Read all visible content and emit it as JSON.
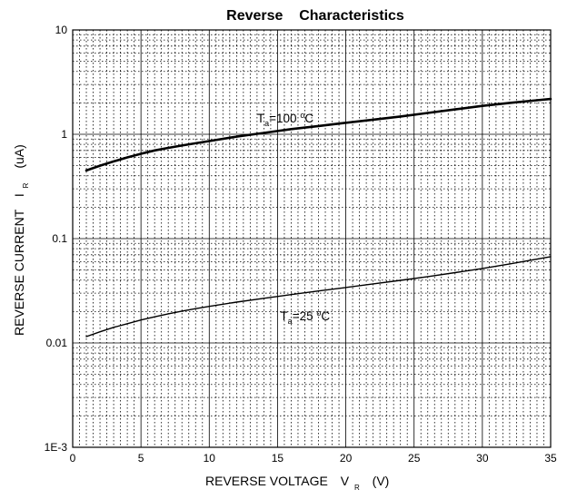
{
  "chart_data": {
    "type": "line",
    "title": "Reverse    Characteristics",
    "xlabel": "REVERSE VOLTAGE",
    "xlabel_symbol": "V",
    "xlabel_subscript": "R",
    "xlabel_unit": "(V)",
    "ylabel": "REVERSE CURRENT",
    "ylabel_symbol": "I",
    "ylabel_subscript": "R",
    "ylabel_unit": "(uA)",
    "xlim": [
      0,
      35
    ],
    "ylim": [
      0.001,
      10
    ],
    "yscale": "log",
    "grid": true,
    "x_ticks": [
      0,
      5,
      10,
      15,
      20,
      25,
      30,
      35
    ],
    "x_tick_labels": [
      "0",
      "5",
      "10",
      "15",
      "20",
      "25",
      "30",
      "35"
    ],
    "y_ticks": [
      0.001,
      0.01,
      0.1,
      1,
      10
    ],
    "y_tick_labels": [
      "1E-3",
      "0.01",
      "0.1",
      "1",
      "10"
    ],
    "series": [
      {
        "label_prefix": "T",
        "label_subscript": "a",
        "label_value": "=100",
        "label_unit": "C",
        "label_degree": "o",
        "label_at": [
          13.5,
          1.3
        ],
        "stroke": "#000000",
        "stroke_width": 2.6,
        "x": [
          1,
          2,
          3,
          4,
          5,
          6,
          7,
          8,
          9,
          10,
          12,
          14,
          16,
          18,
          20,
          22,
          24,
          26,
          28,
          30,
          32,
          34,
          35
        ],
        "values": [
          0.45,
          0.5,
          0.55,
          0.6,
          0.65,
          0.7,
          0.74,
          0.78,
          0.82,
          0.86,
          0.95,
          1.03,
          1.12,
          1.2,
          1.29,
          1.38,
          1.48,
          1.6,
          1.73,
          1.87,
          2.0,
          2.12,
          2.18
        ]
      },
      {
        "label_prefix": "T",
        "label_subscript": "a",
        "label_value": "=25",
        "label_unit": "C",
        "label_degree": "o",
        "label_at": [
          15.2,
          0.0165
        ],
        "stroke": "#000000",
        "stroke_width": 1.4,
        "x": [
          1,
          2,
          3,
          4,
          5,
          6,
          7,
          8,
          9,
          10,
          12,
          14,
          16,
          18,
          20,
          22,
          24,
          26,
          28,
          30,
          32,
          34,
          35
        ],
        "values": [
          0.0115,
          0.0128,
          0.0141,
          0.0153,
          0.0166,
          0.0178,
          0.019,
          0.0202,
          0.0213,
          0.0224,
          0.0246,
          0.0268,
          0.0291,
          0.0315,
          0.034,
          0.0368,
          0.0398,
          0.0432,
          0.0472,
          0.0518,
          0.0572,
          0.0636,
          0.0672
        ]
      }
    ]
  }
}
